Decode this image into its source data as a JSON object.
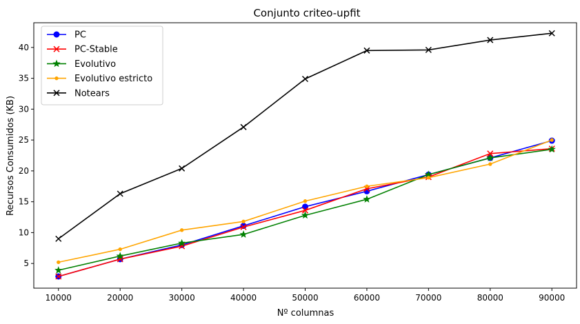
{
  "chart_data": {
    "type": "line",
    "title": "Conjunto  criteo-upfit",
    "xlabel": "Nº columnas",
    "ylabel": "Recursos Consumidos (KB)",
    "x": [
      10000,
      20000,
      30000,
      40000,
      50000,
      60000,
      70000,
      80000,
      90000
    ],
    "xlim": [
      6000,
      94000
    ],
    "ylim": [
      1.0,
      44.0
    ],
    "xticks": [
      10000,
      20000,
      30000,
      40000,
      50000,
      60000,
      70000,
      80000,
      90000
    ],
    "yticks": [
      5,
      10,
      15,
      20,
      25,
      30,
      35,
      40
    ],
    "grid": false,
    "legend_position": "upper-left",
    "series": [
      {
        "name": "PC",
        "color": "#0000ff",
        "marker": "circle",
        "values": [
          2.9,
          5.7,
          8.0,
          11.1,
          14.2,
          16.7,
          19.4,
          22.1,
          24.9
        ]
      },
      {
        "name": "PC-Stable",
        "color": "#ff0000",
        "marker": "x",
        "values": [
          2.9,
          5.7,
          7.8,
          10.9,
          13.6,
          17.1,
          19.0,
          22.8,
          23.6
        ]
      },
      {
        "name": "Evolutivo",
        "color": "#008000",
        "marker": "star",
        "values": [
          3.9,
          6.2,
          8.3,
          9.7,
          12.8,
          15.4,
          19.4,
          22.1,
          23.5
        ]
      },
      {
        "name": "Evolutivo estricto",
        "color": "#ffa500",
        "marker": "dot",
        "values": [
          5.2,
          7.3,
          10.4,
          11.8,
          15.1,
          17.5,
          18.9,
          21.1,
          25.0
        ]
      },
      {
        "name": "Notears",
        "color": "#000000",
        "marker": "x",
        "values": [
          9.0,
          16.3,
          20.4,
          27.1,
          34.9,
          39.5,
          39.6,
          41.2,
          42.3
        ]
      }
    ]
  }
}
